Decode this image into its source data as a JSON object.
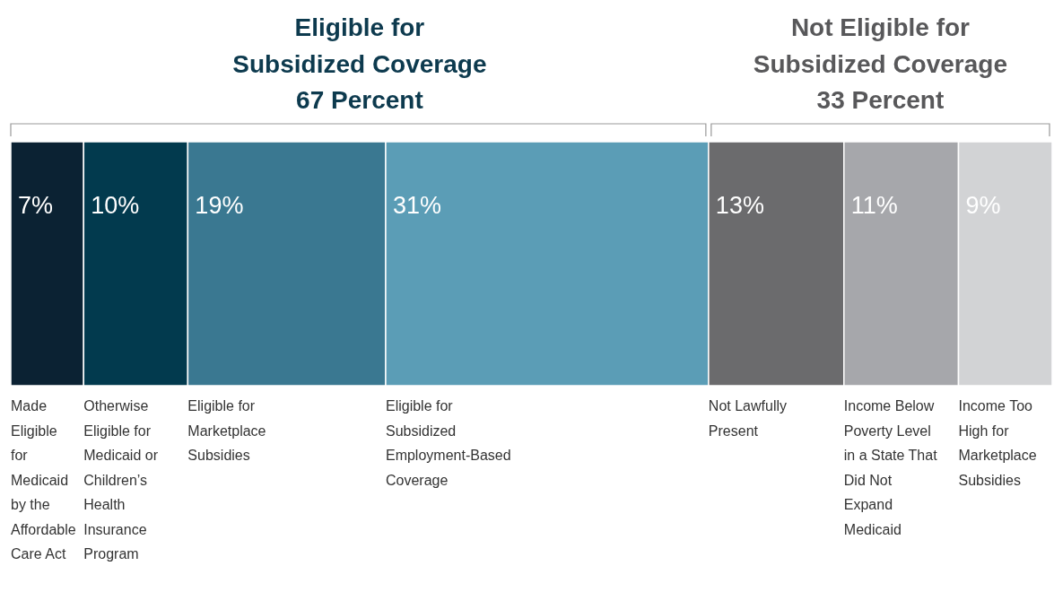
{
  "chart_data": {
    "type": "bar",
    "orientation": "horizontal",
    "stacked": true,
    "categories": [
      null
    ],
    "xlim": [
      0,
      100
    ],
    "legend": false,
    "series": [
      {
        "name": "Made Eligible for Medicaid by the Affordable Care Act",
        "color": "#0b2233",
        "values": [
          7
        ],
        "value_labels": [
          "7%"
        ]
      },
      {
        "name": "Otherwise Eligible for Medicaid or Children’s Health Insurance Program",
        "color": "#023a4e",
        "values": [
          10
        ],
        "value_labels": [
          "10%"
        ]
      },
      {
        "name": "Eligible for Marketplace Subsidies",
        "color": "#3a7891",
        "values": [
          19
        ],
        "value_labels": [
          "19%"
        ]
      },
      {
        "name": "Eligible for Subsidized Employment-Based Coverage",
        "color": "#5b9db6",
        "values": [
          31
        ],
        "value_labels": [
          "31%"
        ]
      },
      {
        "name": "Not Lawfully Present",
        "color": "#6b6b6d",
        "values": [
          13
        ],
        "value_labels": [
          "13%"
        ]
      },
      {
        "name": "Income Below Poverty Level in a State That Did Not Expand Medicaid",
        "color": "#a6a7ab",
        "values": [
          11
        ],
        "value_labels": [
          "11%"
        ]
      },
      {
        "name": "Income Too High for Marketplace Subsidies",
        "color": "#d2d3d5",
        "values": [
          9
        ],
        "value_labels": [
          "9%"
        ]
      }
    ],
    "annotations": [
      "Eligible for\nSubsidized Coverage\n67 Percent",
      "Not Eligible for\nSubsidized Coverage\n33 Percent"
    ]
  }
}
